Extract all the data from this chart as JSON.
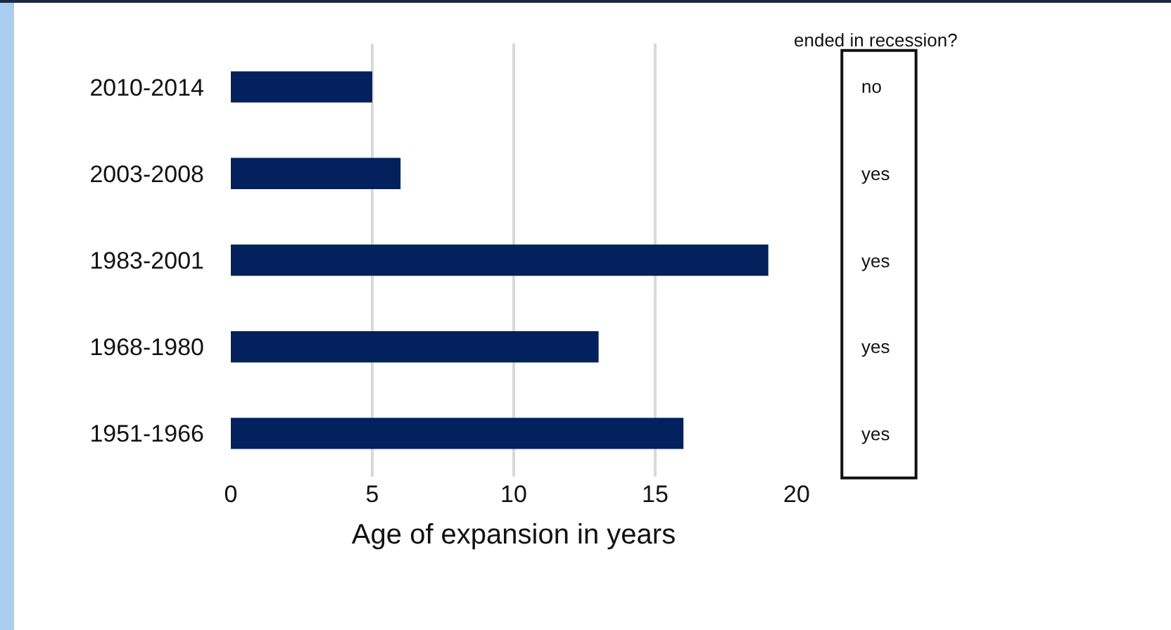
{
  "chart_data": {
    "type": "bar",
    "orientation": "horizontal",
    "categories": [
      "2010-2014",
      "2003-2008",
      "1983-2001",
      "1968-1980",
      "1951-1966"
    ],
    "values": [
      5,
      6,
      19,
      13,
      16
    ],
    "color": "#03215c",
    "xlim": [
      0,
      20
    ],
    "xticks": [
      0,
      5,
      10,
      15,
      20
    ],
    "xlabel": "Age of expansion in years",
    "grid": "x",
    "annotations": [
      "ended in recession?",
      "no",
      "yes",
      "yes",
      "yes",
      "yes"
    ]
  }
}
